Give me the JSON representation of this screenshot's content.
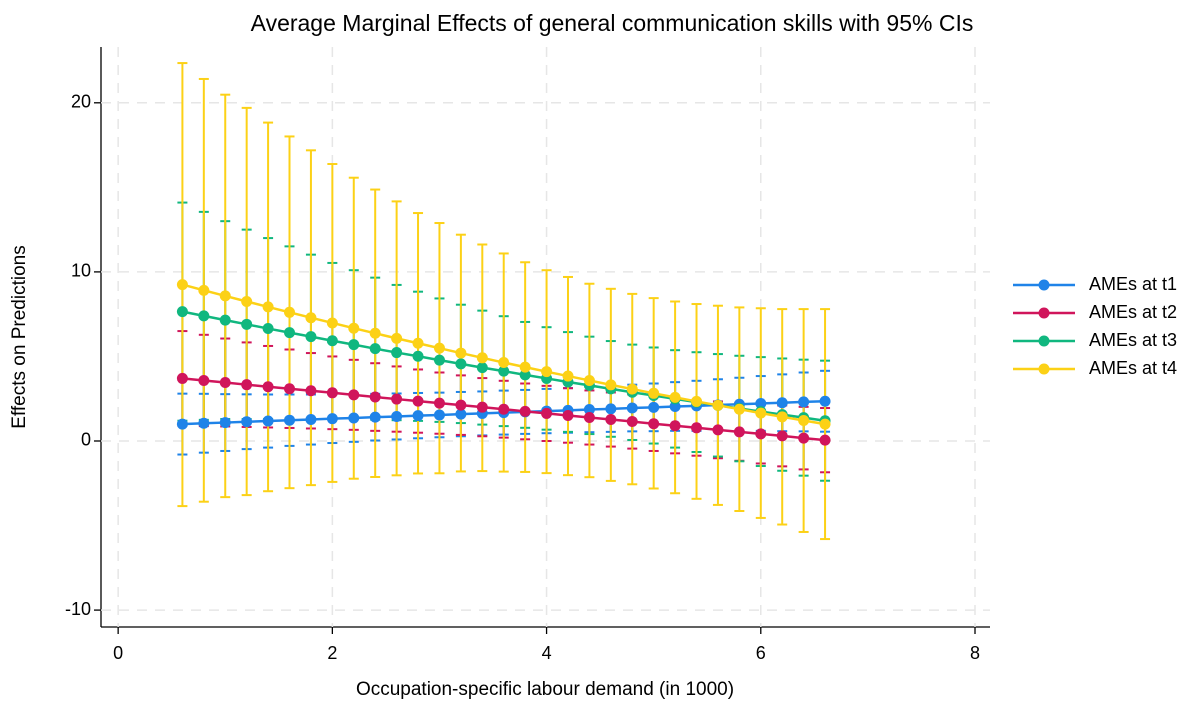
{
  "chart_data": {
    "type": "errorbar-line",
    "title": "Average Marginal Effects of general communication skills with 95% CIs",
    "x_label": "Occupation-specific labour demand (in 1000)",
    "y_label": "Effects on Predictions",
    "x": [
      0.6,
      0.8,
      1.0,
      1.2,
      1.4,
      1.6,
      1.8,
      2.0,
      2.2,
      2.4,
      2.6,
      2.8,
      3.0,
      3.2,
      3.4,
      3.6,
      3.8,
      4.0,
      4.2,
      4.4,
      4.6,
      4.8,
      5.0,
      5.2,
      5.4,
      5.6,
      5.8,
      6.0,
      6.2,
      6.4,
      6.6
    ],
    "xlim": [
      -0.16,
      8.14
    ],
    "xticks": [
      0,
      2,
      4,
      6,
      8
    ],
    "ylim": [
      -11,
      23.3
    ],
    "yticks": [
      -10,
      0,
      10,
      20
    ],
    "grid": true,
    "legend": "right",
    "series": [
      {
        "name": "AMEs at t1",
        "color": "#1f83e8",
        "values": [
          1.0,
          1.05,
          1.09,
          1.14,
          1.18,
          1.23,
          1.27,
          1.32,
          1.36,
          1.41,
          1.45,
          1.5,
          1.54,
          1.59,
          1.63,
          1.68,
          1.72,
          1.77,
          1.81,
          1.86,
          1.9,
          1.95,
          1.99,
          2.04,
          2.08,
          2.13,
          2.17,
          2.22,
          2.26,
          2.31,
          2.35
        ],
        "errors": [
          1.8,
          1.74,
          1.68,
          1.62,
          1.57,
          1.52,
          1.48,
          1.44,
          1.41,
          1.38,
          1.36,
          1.34,
          1.32,
          1.31,
          1.3,
          1.3,
          1.3,
          1.31,
          1.32,
          1.34,
          1.36,
          1.38,
          1.41,
          1.44,
          1.48,
          1.52,
          1.57,
          1.62,
          1.68,
          1.74,
          1.8
        ]
      },
      {
        "name": "AMEs at t2",
        "color": "#d0155b",
        "values": [
          3.7,
          3.58,
          3.46,
          3.33,
          3.21,
          3.09,
          2.97,
          2.85,
          2.73,
          2.6,
          2.48,
          2.36,
          2.24,
          2.12,
          2.0,
          1.88,
          1.75,
          1.63,
          1.51,
          1.39,
          1.27,
          1.15,
          1.02,
          0.9,
          0.78,
          0.66,
          0.54,
          0.42,
          0.3,
          0.17,
          0.05
        ],
        "errors": [
          2.8,
          2.7,
          2.6,
          2.5,
          2.41,
          2.32,
          2.23,
          2.15,
          2.07,
          2.0,
          1.93,
          1.87,
          1.81,
          1.76,
          1.72,
          1.68,
          1.65,
          1.63,
          1.61,
          1.6,
          1.6,
          1.6,
          1.61,
          1.63,
          1.65,
          1.68,
          1.71,
          1.75,
          1.8,
          1.85,
          1.9
        ]
      },
      {
        "name": "AMEs at t3",
        "color": "#10b77f",
        "values": [
          7.65,
          7.4,
          7.15,
          6.9,
          6.65,
          6.41,
          6.17,
          5.93,
          5.7,
          5.46,
          5.23,
          5.01,
          4.78,
          4.56,
          4.34,
          4.13,
          3.91,
          3.7,
          3.49,
          3.29,
          3.08,
          2.88,
          2.69,
          2.49,
          2.3,
          2.11,
          1.92,
          1.74,
          1.56,
          1.38,
          1.2
        ],
        "errors": [
          6.45,
          6.15,
          5.85,
          5.6,
          5.35,
          5.1,
          4.85,
          4.6,
          4.4,
          4.2,
          4.0,
          3.82,
          3.65,
          3.5,
          3.37,
          3.25,
          3.13,
          3.03,
          2.95,
          2.88,
          2.83,
          2.82,
          2.84,
          2.88,
          2.95,
          3.03,
          3.12,
          3.22,
          3.32,
          3.43,
          3.55
        ]
      },
      {
        "name": "AMEs at t4",
        "color": "#fcd116",
        "values": [
          9.25,
          8.91,
          8.58,
          8.25,
          7.93,
          7.61,
          7.29,
          6.98,
          6.67,
          6.37,
          6.07,
          5.78,
          5.49,
          5.2,
          4.92,
          4.64,
          4.37,
          4.1,
          3.84,
          3.58,
          3.32,
          3.07,
          2.82,
          2.58,
          2.34,
          2.11,
          1.88,
          1.65,
          1.43,
          1.21,
          1.0
        ],
        "errors": [
          13.1,
          12.5,
          11.9,
          11.45,
          10.9,
          10.4,
          9.9,
          9.4,
          8.9,
          8.5,
          8.1,
          7.7,
          7.4,
          7.0,
          6.7,
          6.45,
          6.2,
          6.0,
          5.86,
          5.72,
          5.68,
          5.63,
          5.63,
          5.67,
          5.76,
          5.89,
          6.02,
          6.2,
          6.37,
          6.59,
          6.8
        ]
      }
    ]
  }
}
